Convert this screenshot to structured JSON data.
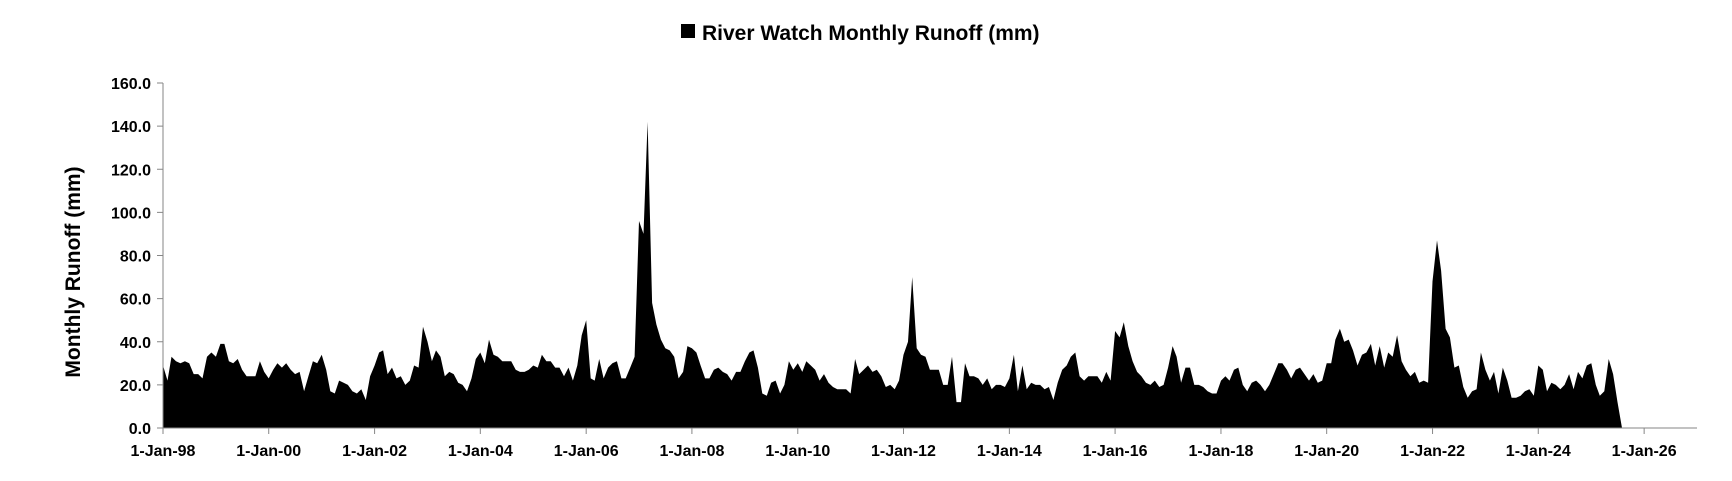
{
  "chart_data": {
    "type": "area",
    "title": "",
    "xlabel": "",
    "ylabel": "Monthly Runoff (mm)",
    "ylim": [
      0,
      160
    ],
    "yticks": [
      "0.0",
      "20.0",
      "40.0",
      "60.0",
      "80.0",
      "100.0",
      "120.0",
      "140.0",
      "160.0"
    ],
    "xlim": [
      "1998-01-01",
      "2027-01-01"
    ],
    "xticks": [
      "1-Jan-98",
      "1-Jan-00",
      "1-Jan-02",
      "1-Jan-04",
      "1-Jan-06",
      "1-Jan-08",
      "1-Jan-10",
      "1-Jan-12",
      "1-Jan-14",
      "1-Jan-16",
      "1-Jan-18",
      "1-Jan-20",
      "1-Jan-22",
      "1-Jan-24",
      "1-Jan-26"
    ],
    "grid": false,
    "legend_position": "top",
    "fill_color": "#000000",
    "series": [
      {
        "name": "River Watch Monthly Runoff (mm)",
        "start": "1998-01",
        "interval": "monthly",
        "values": [
          29,
          22,
          33,
          31,
          30,
          31,
          30,
          25,
          25,
          23,
          33,
          35,
          33,
          39,
          39,
          31,
          30,
          32,
          27,
          24,
          24,
          24,
          31,
          26,
          23,
          27,
          30,
          28,
          30,
          27,
          25,
          26,
          17,
          24,
          31,
          30,
          34,
          27,
          17,
          16,
          22,
          21,
          20,
          17,
          16,
          18,
          13,
          24,
          29,
          35,
          36,
          25,
          28,
          23,
          24,
          20,
          22,
          29,
          28,
          47,
          40,
          31,
          36,
          33,
          24,
          26,
          25,
          21,
          20,
          17,
          23,
          32,
          35,
          30,
          41,
          34,
          33,
          31,
          31,
          31,
          27,
          26,
          26,
          27,
          29,
          28,
          34,
          31,
          31,
          28,
          28,
          24,
          28,
          22,
          29,
          43,
          50,
          23,
          22,
          32,
          23,
          28,
          30,
          31,
          23,
          23,
          28,
          33,
          96,
          90,
          142,
          58,
          48,
          41,
          37,
          36,
          33,
          23,
          26,
          38,
          37,
          35,
          29,
          23,
          23,
          27,
          28,
          26,
          25,
          22,
          26,
          26,
          31,
          35,
          36,
          28,
          16,
          15,
          21,
          22,
          16,
          20,
          31,
          27,
          30,
          26,
          31,
          29,
          27,
          22,
          25,
          21,
          19,
          18,
          18,
          18,
          16,
          32,
          25,
          27,
          29,
          26,
          27,
          24,
          19,
          20,
          18,
          22,
          34,
          40,
          70,
          37,
          34,
          33,
          27,
          27,
          27,
          20,
          20,
          33,
          12,
          12,
          30,
          24,
          24,
          23,
          20,
          23,
          18,
          20,
          20,
          19,
          23,
          34,
          17,
          29,
          18,
          21,
          20,
          20,
          18,
          19,
          13,
          21,
          27,
          29,
          33,
          35,
          24,
          22,
          24,
          24,
          24,
          21,
          26,
          22,
          45,
          42,
          49,
          38,
          31,
          26,
          24,
          21,
          20,
          22,
          19,
          20,
          28,
          38,
          33,
          21,
          28,
          28,
          20,
          20,
          19,
          17,
          16,
          16,
          22,
          24,
          22,
          27,
          28,
          20,
          17,
          21,
          22,
          20,
          17,
          20,
          25,
          30,
          30,
          27,
          23,
          27,
          28,
          25,
          22,
          25,
          21,
          22,
          30,
          30,
          41,
          46,
          40,
          41,
          36,
          29,
          34,
          35,
          39,
          29,
          38,
          28,
          35,
          33,
          43,
          31,
          27,
          24,
          26,
          21,
          22,
          21,
          68,
          87,
          73,
          46,
          42,
          28,
          29,
          19,
          14,
          17,
          18,
          35,
          27,
          22,
          26,
          16,
          28,
          22,
          14,
          14,
          15,
          17,
          18,
          15,
          29,
          27,
          17,
          21,
          20,
          18,
          20,
          25,
          18,
          26,
          23,
          29,
          30,
          20,
          15,
          17,
          32,
          25,
          12,
          0
        ]
      }
    ]
  }
}
